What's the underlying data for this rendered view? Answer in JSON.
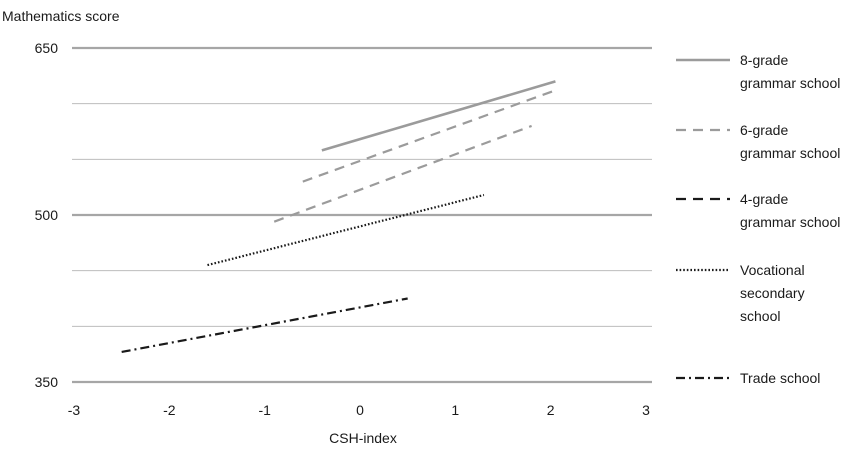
{
  "chart_data": {
    "type": "line",
    "ylabel": "Mathematics score",
    "xlabel": "CSH-index",
    "xlim": [
      -3,
      3
    ],
    "ylim": [
      350,
      650
    ],
    "x_ticks": [
      "-3",
      "-2",
      "-1",
      "0",
      "1",
      "2",
      "3"
    ],
    "y_ticks": [
      "350",
      "500",
      "650"
    ],
    "y_gridlines": [
      350,
      400,
      450,
      500,
      550,
      600,
      650
    ],
    "major_gridlines": [
      350,
      500,
      650
    ],
    "grid": true,
    "legend_position": "right",
    "series": [
      {
        "name": "8-grade grammar school",
        "legend_lines": [
          "8-grade",
          "grammar school"
        ],
        "color": "#9b9b9b",
        "style": "solid",
        "lines": [
          {
            "x": [
              -0.4,
              2.05
            ],
            "y": [
              558,
              620
            ]
          }
        ]
      },
      {
        "name": "6-grade grammar school",
        "legend_lines": [
          "6-grade",
          "grammar school"
        ],
        "color": "#9b9b9b",
        "style": "dashed",
        "lines": [
          {
            "x": [
              -0.6,
              2.05
            ],
            "y": [
              530,
              612
            ]
          },
          {
            "x": [
              -0.9,
              1.8
            ],
            "y": [
              494,
              580
            ]
          }
        ]
      },
      {
        "name": "4-grade grammar school",
        "legend_lines": [
          "4-grade",
          "grammar school"
        ],
        "color": "#1a1a1a",
        "style": "dashed",
        "lines": []
      },
      {
        "name": "Vocational secondary school",
        "legend_lines": [
          "Vocational",
          "secondary",
          "school"
        ],
        "color": "#1a1a1a",
        "style": "dotted",
        "lines": [
          {
            "x": [
              -1.6,
              1.3
            ],
            "y": [
              455,
              518
            ]
          }
        ]
      },
      {
        "name": "Trade school",
        "legend_lines": [
          "Trade school"
        ],
        "color": "#1a1a1a",
        "style": "dashdot",
        "lines": [
          {
            "x": [
              -2.5,
              0.5
            ],
            "y": [
              377,
              425
            ]
          }
        ]
      }
    ]
  }
}
